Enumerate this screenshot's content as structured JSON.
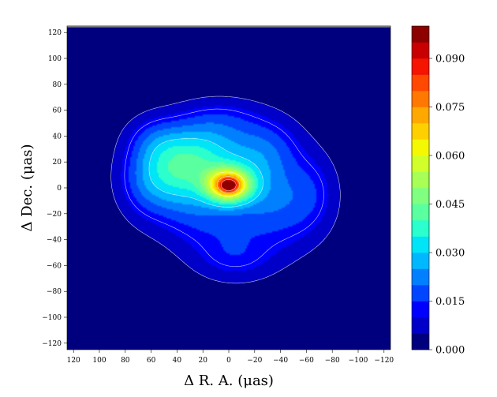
{
  "chart_data": {
    "type": "heatmap",
    "title": "",
    "xlabel": "Δ R. A.  (μas)",
    "ylabel": "Δ Dec.  (μas)",
    "xlim": [
      125,
      -125
    ],
    "ylim": [
      -125,
      125
    ],
    "xticks": [
      120,
      100,
      80,
      60,
      40,
      20,
      0,
      -20,
      -40,
      -60,
      -80,
      -100,
      -120
    ],
    "xtick_labels": [
      "120",
      "100",
      "80",
      "60",
      "40",
      "20",
      "0",
      "−20",
      "−40",
      "−60",
      "−80",
      "−100",
      "−120"
    ],
    "yticks": [
      120,
      100,
      80,
      60,
      40,
      20,
      0,
      -20,
      -40,
      -60,
      -80,
      -100,
      -120
    ],
    "ytick_labels": [
      "120",
      "100",
      "80",
      "60",
      "40",
      "20",
      "0",
      "−20",
      "−40",
      "−60",
      "−80",
      "−100",
      "−120"
    ],
    "colorbar": {
      "min": 0.0,
      "max": 0.1,
      "step": 0.005,
      "ticks": [
        0.0,
        0.015,
        0.03,
        0.045,
        0.06,
        0.075,
        0.09
      ],
      "tick_labels": [
        "0.000",
        "0.015",
        "0.030",
        "0.045",
        "0.060",
        "0.075",
        "0.090"
      ],
      "colormap": "jet",
      "colors": [
        "#00007f",
        "#0000c8",
        "#0000ff",
        "#0046ff",
        "#0080ff",
        "#00b8ff",
        "#00e4f8",
        "#2affcd",
        "#5affa0",
        "#80ff80",
        "#a8ff56",
        "#d0ff2c",
        "#f4f802",
        "#ffd000",
        "#ffa800",
        "#ff7800",
        "#ff4800",
        "#f41400",
        "#c80000",
        "#8c0000"
      ]
    },
    "components": [
      {
        "ra": 0,
        "dec": 2,
        "amplitude": 0.058,
        "sigma_ra": 12,
        "sigma_dec": 9
      },
      {
        "ra": 0,
        "dec": 2,
        "amplitude": 0.034,
        "sigma_ra": 4,
        "sigma_dec": 3
      },
      {
        "ra": 38,
        "dec": 14,
        "amplitude": 0.03,
        "sigma_ra": 24,
        "sigma_dec": 20
      },
      {
        "ra": 15,
        "dec": 30,
        "amplitude": 0.016,
        "sigma_ra": 24,
        "sigma_dec": 18
      },
      {
        "ra": -22,
        "dec": 12,
        "amplitude": 0.015,
        "sigma_ra": 20,
        "sigma_dec": 22
      },
      {
        "ra": -40,
        "dec": -20,
        "amplitude": 0.013,
        "sigma_ra": 24,
        "sigma_dec": 24
      },
      {
        "ra": 20,
        "dec": -22,
        "amplitude": 0.013,
        "sigma_ra": 26,
        "sigma_dec": 22
      },
      {
        "ra": -5,
        "dec": -55,
        "amplitude": 0.01,
        "sigma_ra": 22,
        "sigma_dec": 14
      },
      {
        "ra": -65,
        "dec": 0,
        "amplitude": 0.009,
        "sigma_ra": 15,
        "sigma_dec": 22
      },
      {
        "ra": 58,
        "dec": 38,
        "amplitude": 0.009,
        "sigma_ra": 16,
        "sigma_dec": 14
      },
      {
        "ra": 5,
        "dec": 55,
        "amplitude": 0.008,
        "sigma_ra": 24,
        "sigma_dec": 12
      },
      {
        "ra": -35,
        "dec": 35,
        "amplitude": 0.008,
        "sigma_ra": 18,
        "sigma_dec": 16
      },
      {
        "ra": 65,
        "dec": 0,
        "amplitude": 0.009,
        "sigma_ra": 16,
        "sigma_dec": 20
      }
    ],
    "background_level": 0.0,
    "contour_levels": [
      0.005,
      0.012,
      0.03,
      0.06,
      0.075,
      0.09
    ]
  }
}
